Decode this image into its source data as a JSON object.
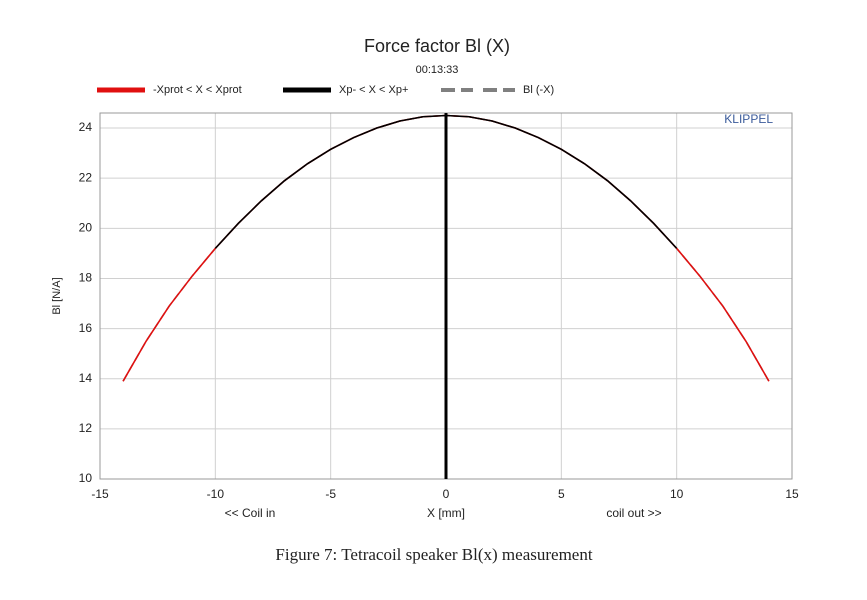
{
  "chart_data": {
    "type": "line",
    "title": "Force factor Bl (X)",
    "subtitle": "00:13:33",
    "watermark": "KLIPPEL",
    "xlabel": "X [mm]",
    "ylabel": "Bl [N/A]",
    "x_annotations": [
      "<< Coil in",
      "coil out >>"
    ],
    "caption": "Figure 7: Tetracoil speaker Bl(x) measurement",
    "x": [
      -14,
      -13,
      -12,
      -11,
      -10,
      -9,
      -8,
      -7,
      -6,
      -5,
      -4,
      -3,
      -2,
      -1,
      0,
      1,
      2,
      3,
      4,
      5,
      6,
      7,
      8,
      9,
      10,
      11,
      12,
      13,
      14
    ],
    "series": [
      {
        "name": "-Xprot < X < Xprot",
        "color": "#e01010",
        "style": "solid",
        "values": [
          13.9,
          15.5,
          16.9,
          18.1,
          19.2,
          20.2,
          21.1,
          21.9,
          22.58,
          23.15,
          23.62,
          24.0,
          24.28,
          24.45,
          24.5,
          24.45,
          24.28,
          24.0,
          23.62,
          23.15,
          22.58,
          21.9,
          21.1,
          20.2,
          19.2,
          18.1,
          16.9,
          15.5,
          13.9
        ]
      },
      {
        "name": "Xp- < X < Xp+",
        "color": "#000000",
        "style": "solid",
        "values": [
          null,
          null,
          null,
          null,
          19.2,
          20.2,
          21.1,
          21.9,
          22.58,
          23.15,
          23.62,
          24.0,
          24.28,
          24.45,
          24.5,
          24.45,
          24.28,
          24.0,
          23.62,
          23.15,
          22.58,
          21.9,
          21.1,
          20.2,
          19.2,
          null,
          null,
          null,
          null
        ]
      },
      {
        "name": "Bl (-X)",
        "color": "#808080",
        "style": "dashed",
        "values": [
          13.9,
          15.5,
          16.9,
          18.1,
          19.2,
          20.2,
          21.1,
          21.9,
          22.58,
          23.15,
          23.62,
          24.0,
          24.28,
          24.45,
          24.5,
          24.45,
          24.28,
          24.0,
          23.62,
          23.15,
          22.58,
          21.9,
          21.1,
          20.2,
          19.2,
          18.1,
          16.9,
          15.5,
          13.9
        ]
      }
    ],
    "vlines": [
      0
    ],
    "xlim": [
      -15,
      15
    ],
    "ylim": [
      10,
      24.6
    ],
    "xticks": [
      -15,
      -10,
      -5,
      0,
      5,
      10,
      15
    ],
    "yticks": [
      10,
      12,
      14,
      16,
      18,
      20,
      22,
      24
    ],
    "grid": true
  }
}
